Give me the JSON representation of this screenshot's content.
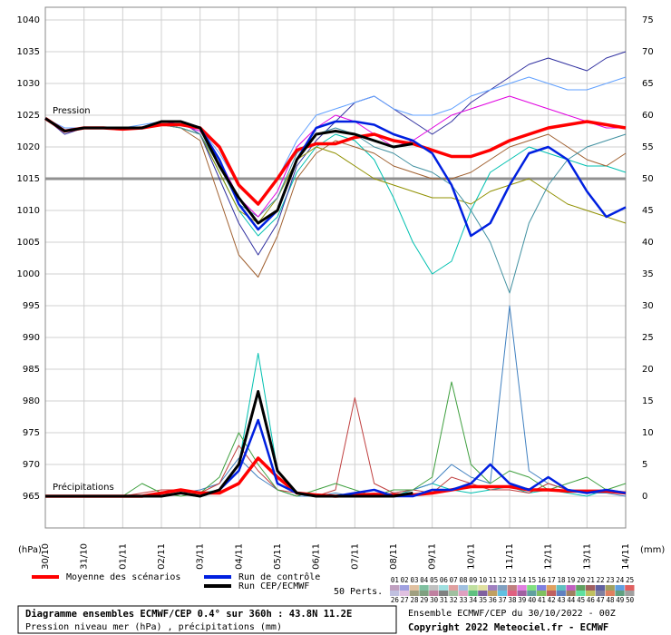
{
  "chart_data": {
    "type": "line",
    "annotations": [
      "Pression",
      "Précipitations"
    ],
    "y_label": "(hPa)",
    "y2_label": "(mm)",
    "x": [
      0,
      0.5,
      1,
      1.5,
      2,
      2.5,
      3,
      3.5,
      4,
      4.5,
      5,
      5.5,
      6,
      6.5,
      7,
      7.5,
      8,
      8.5,
      9,
      9.5,
      10,
      10.5,
      11,
      11.5,
      12,
      12.5,
      13,
      13.5,
      14,
      14.5,
      15
    ],
    "xlim": [
      0,
      15
    ],
    "xticks": [
      {
        "value": 0,
        "label": "30/10"
      },
      {
        "value": 1,
        "label": "31/10"
      },
      {
        "value": 2,
        "label": "01/11"
      },
      {
        "value": 3,
        "label": "02/11"
      },
      {
        "value": 4,
        "label": "03/11"
      },
      {
        "value": 5,
        "label": "04/11"
      },
      {
        "value": 6,
        "label": "05/11"
      },
      {
        "value": 7,
        "label": "06/11"
      },
      {
        "value": 8,
        "label": "07/11"
      },
      {
        "value": 9,
        "label": "08/11"
      },
      {
        "value": 10,
        "label": "09/11"
      },
      {
        "value": 11,
        "label": "10/11"
      },
      {
        "value": 12,
        "label": "11/11"
      },
      {
        "value": 13,
        "label": "12/11"
      },
      {
        "value": 14,
        "label": "13/11"
      },
      {
        "value": 15,
        "label": "14/11"
      }
    ],
    "ylim": [
      960,
      1042
    ],
    "yticks": [
      965,
      970,
      975,
      980,
      985,
      990,
      995,
      1000,
      1005,
      1010,
      1015,
      1020,
      1025,
      1030,
      1035,
      1040
    ],
    "y2lim": [
      -5,
      77
    ],
    "y2ticks": [
      0,
      5,
      10,
      15,
      20,
      25,
      30,
      35,
      40,
      45,
      50,
      55,
      60,
      65,
      70,
      75
    ],
    "grid": true,
    "reference_line": 1015,
    "series": [
      {
        "color": "#00c0b0",
        "width": 1,
        "values": [
          1024.5,
          1022.5,
          1023,
          1023,
          1023,
          1023,
          1023.5,
          1023,
          1022,
          1016,
          1010,
          1006,
          1009,
          1016,
          1020,
          1022,
          1021,
          1018,
          1012,
          1005,
          1000,
          1002,
          1010,
          1016,
          1018,
          1020,
          1019,
          1018,
          1017,
          1017,
          1016
        ]
      },
      {
        "color": "#3030a0",
        "width": 1,
        "values": [
          1024.5,
          1022,
          1023,
          1023,
          1023,
          1023,
          1024,
          1024,
          1022,
          1015,
          1008,
          1003,
          1008,
          1017,
          1021,
          1024,
          1027,
          1028,
          1026,
          1024,
          1022,
          1024,
          1027,
          1029,
          1031,
          1033,
          1034,
          1033,
          1032,
          1034,
          1035
        ]
      },
      {
        "color": "#a06030",
        "width": 1,
        "values": [
          1024.5,
          1022.5,
          1023,
          1023,
          1023,
          1023,
          1023.5,
          1023,
          1021,
          1012,
          1003,
          999.5,
          1006,
          1015,
          1019,
          1021,
          1020,
          1019,
          1017,
          1016,
          1015,
          1015,
          1016,
          1018,
          1020,
          1021,
          1022,
          1020,
          1018,
          1017,
          1019
        ]
      },
      {
        "color": "#60a0ff",
        "width": 1,
        "values": [
          1024.5,
          1023,
          1023,
          1023,
          1023,
          1023.5,
          1024,
          1024,
          1023,
          1019,
          1014,
          1011,
          1015,
          1021,
          1025,
          1026,
          1027,
          1028,
          1026,
          1025,
          1025,
          1026,
          1028,
          1029,
          1030,
          1031,
          1030,
          1029,
          1029,
          1030,
          1031
        ]
      },
      {
        "color": "#909000",
        "width": 1,
        "values": [
          1024.5,
          1022.5,
          1023,
          1023,
          1023,
          1023,
          1023.5,
          1023,
          1022,
          1016,
          1010,
          1008,
          1012,
          1018,
          1020,
          1019,
          1017,
          1015,
          1014,
          1013,
          1012,
          1012,
          1011,
          1013,
          1014,
          1015,
          1013,
          1011,
          1010,
          1009,
          1008
        ]
      },
      {
        "color": "#4090a0",
        "width": 1,
        "values": [
          1024.5,
          1022.5,
          1023,
          1023,
          1023,
          1023,
          1023.5,
          1023,
          1022,
          1017,
          1011,
          1009,
          1012,
          1019,
          1022,
          1023,
          1022,
          1020,
          1019,
          1017,
          1016,
          1014,
          1010,
          1005,
          997,
          1008,
          1014,
          1018,
          1020,
          1021,
          1022
        ]
      },
      {
        "color": "#e000e0",
        "width": 1,
        "values": [
          1024.5,
          1022.5,
          1023,
          1023,
          1023,
          1023,
          1024,
          1023.5,
          1022.5,
          1018,
          1012,
          1009,
          1013,
          1020,
          1023,
          1025,
          1024,
          1022,
          1020,
          1021,
          1023,
          1025,
          1026,
          1027,
          1028,
          1027,
          1026,
          1025,
          1024,
          1023,
          1023
        ]
      },
      {
        "color": "#00c0b0",
        "width": 1,
        "axis": "y2",
        "values": [
          0,
          0,
          0,
          0,
          0,
          0,
          0.5,
          1,
          0.5,
          1,
          5,
          22.5,
          4,
          0.5,
          0,
          0,
          0.5,
          1,
          0,
          1,
          2,
          1,
          0.5,
          1,
          1.5,
          0.5,
          1,
          0.5,
          0,
          1,
          0.5
        ]
      },
      {
        "color": "#4080c0",
        "width": 1,
        "axis": "y2",
        "values": [
          0,
          0,
          0,
          0,
          0,
          0,
          0,
          0.5,
          1,
          2,
          6,
          3,
          1,
          0,
          0,
          0.5,
          0,
          0,
          0.5,
          1,
          2,
          5,
          3,
          2,
          30,
          4,
          2,
          1,
          0.5,
          0.5,
          0
        ]
      },
      {
        "color": "#c04040",
        "width": 1,
        "axis": "y2",
        "values": [
          0,
          0,
          0,
          0,
          0,
          0.5,
          1,
          1,
          0.5,
          2,
          8,
          4,
          1,
          0.5,
          0,
          1,
          15.5,
          2,
          0.5,
          1,
          0.5,
          3,
          2,
          1,
          1,
          0.5,
          2,
          1,
          0.5,
          1,
          0.5
        ]
      },
      {
        "color": "#40a040",
        "width": 1,
        "axis": "y2",
        "values": [
          0,
          0,
          0,
          0,
          0,
          2,
          0.5,
          0,
          0.5,
          3,
          10,
          5,
          1,
          0,
          1,
          2,
          1,
          0,
          1,
          1,
          3,
          18,
          5,
          2,
          4,
          3,
          1,
          2,
          3,
          1,
          2
        ]
      },
      {
        "name": "Moyenne des scénarios",
        "color": "#ff0000",
        "width": 3.5,
        "values": [
          1024.5,
          1022.5,
          1023,
          1023,
          1022.8,
          1023,
          1023.5,
          1023.5,
          1023,
          1020,
          1014,
          1011,
          1015,
          1019.5,
          1020.5,
          1020.5,
          1021.5,
          1022,
          1021,
          1020.5,
          1019.5,
          1018.5,
          1018.5,
          1019.5,
          1021,
          1022,
          1023,
          1023.5,
          1024,
          1023.5,
          1023
        ]
      },
      {
        "color": "#ff0000",
        "width": 3.5,
        "axis": "y2",
        "values": [
          0,
          0,
          0,
          0,
          0,
          0,
          0.5,
          1,
          0.5,
          0.5,
          2,
          6,
          3,
          0.5,
          0.2,
          0,
          0.2,
          0.3,
          0.2,
          0.2,
          0.5,
          1,
          1.5,
          1.5,
          1.5,
          1,
          1,
          0.8,
          0.8,
          0.8,
          0.5
        ]
      },
      {
        "name": "Run de contrôle",
        "color": "#0020e0",
        "width": 2.5,
        "values": [
          1024.5,
          1022.5,
          1023,
          1023,
          1023,
          1023,
          1024,
          1024,
          1023,
          1018,
          1011,
          1007,
          1010,
          1018,
          1023,
          1024,
          1024,
          1023.5,
          1022,
          1021,
          1019,
          1014,
          1006,
          1008,
          1014,
          1019,
          1020,
          1018,
          1013,
          1009,
          1010.5
        ]
      },
      {
        "color": "#0020e0",
        "width": 2.5,
        "axis": "y2",
        "values": [
          0,
          0,
          0,
          0,
          0,
          0,
          0,
          0.5,
          0,
          1,
          4,
          12,
          2,
          0.5,
          0,
          0,
          0.5,
          1,
          0,
          0,
          1,
          1,
          2,
          5,
          2,
          1,
          3,
          1,
          0.5,
          1,
          0.5
        ]
      },
      {
        "name": "Run CEP/ECMWF",
        "color": "#000000",
        "width": 3,
        "values": [
          1024.5,
          1022.5,
          1023,
          1023,
          1023,
          1023,
          1024,
          1024,
          1023,
          1017,
          1012,
          1008,
          1010,
          1018,
          1022,
          1022.5,
          1022,
          1021,
          1020,
          1020.5,
          null,
          null,
          null,
          null,
          null,
          null,
          null,
          null,
          null,
          null,
          null
        ]
      },
      {
        "color": "#000000",
        "width": 3,
        "axis": "y2",
        "values": [
          0,
          0,
          0,
          0,
          0,
          0,
          0,
          0.5,
          0,
          1,
          5,
          16.5,
          4,
          0.5,
          0,
          0,
          0,
          0,
          0,
          0.5,
          null,
          null,
          null,
          null,
          null,
          null,
          null,
          null,
          null,
          null,
          null
        ]
      }
    ],
    "perturbation_key": {
      "label": "50 Perts.",
      "members": [
        {
          "label": "01",
          "color": "#c0a0c0"
        },
        {
          "label": "02",
          "color": "#a0a0e0"
        },
        {
          "label": "03",
          "color": "#e0c0a0"
        },
        {
          "label": "04",
          "color": "#80c0a0"
        },
        {
          "label": "05",
          "color": "#c0c0c0"
        },
        {
          "label": "06",
          "color": "#a0e0e0"
        },
        {
          "label": "07",
          "color": "#e0a0a0"
        },
        {
          "label": "08",
          "color": "#a0c0e0"
        },
        {
          "label": "09",
          "color": "#c0e0a0"
        },
        {
          "label": "10",
          "color": "#e0e0a0"
        },
        {
          "label": "11",
          "color": "#a080c0"
        },
        {
          "label": "12",
          "color": "#80a0c0"
        },
        {
          "label": "13",
          "color": "#c08080"
        },
        {
          "label": "14",
          "color": "#e080e0"
        },
        {
          "label": "15",
          "color": "#80e080"
        },
        {
          "label": "16",
          "color": "#8080e0"
        },
        {
          "label": "17",
          "color": "#e0a060"
        },
        {
          "label": "18",
          "color": "#60c0c0"
        },
        {
          "label": "19",
          "color": "#c060c0"
        },
        {
          "label": "20",
          "color": "#60a060"
        },
        {
          "label": "21",
          "color": "#a06060"
        },
        {
          "label": "22",
          "color": "#6060a0"
        },
        {
          "label": "23",
          "color": "#a0a060"
        },
        {
          "label": "24",
          "color": "#60a0e0"
        },
        {
          "label": "25",
          "color": "#e06060"
        },
        {
          "label": "26",
          "color": "#c0c0e0"
        },
        {
          "label": "27",
          "color": "#e0c0e0"
        },
        {
          "label": "28",
          "color": "#a0a080"
        },
        {
          "label": "29",
          "color": "#80a080"
        },
        {
          "label": "30",
          "color": "#c080a0"
        },
        {
          "label": "31",
          "color": "#808080"
        },
        {
          "label": "32",
          "color": "#a0c0a0"
        },
        {
          "label": "33",
          "color": "#e0a0c0"
        },
        {
          "label": "34",
          "color": "#60c080"
        },
        {
          "label": "35",
          "color": "#8060a0"
        },
        {
          "label": "36",
          "color": "#c0a060"
        },
        {
          "label": "37",
          "color": "#60c0e0"
        },
        {
          "label": "38",
          "color": "#e06080"
        },
        {
          "label": "39",
          "color": "#a060a0"
        },
        {
          "label": "40",
          "color": "#60a0a0"
        },
        {
          "label": "41",
          "color": "#80c060"
        },
        {
          "label": "42",
          "color": "#c06060"
        },
        {
          "label": "43",
          "color": "#6080c0"
        },
        {
          "label": "44",
          "color": "#a08060"
        },
        {
          "label": "45",
          "color": "#60e0a0"
        },
        {
          "label": "46",
          "color": "#c0c060"
        },
        {
          "label": "47",
          "color": "#8080a0"
        },
        {
          "label": "48",
          "color": "#e08060"
        },
        {
          "label": "49",
          "color": "#60a080"
        },
        {
          "label": "50",
          "color": "#a0a0a0"
        }
      ]
    },
    "footer": {
      "title": "Diagramme ensembles ECMWF/CEP 0.4° sur 360h : 43.8N 11.2E",
      "subtitle": "Pression niveau mer (hPa) , précipitations (mm)",
      "run": "Ensemble ECMWF/CEP du 30/10/2022 - 00Z",
      "copyright": "Copyright 2022 Meteociel.fr - ECMWF"
    }
  }
}
